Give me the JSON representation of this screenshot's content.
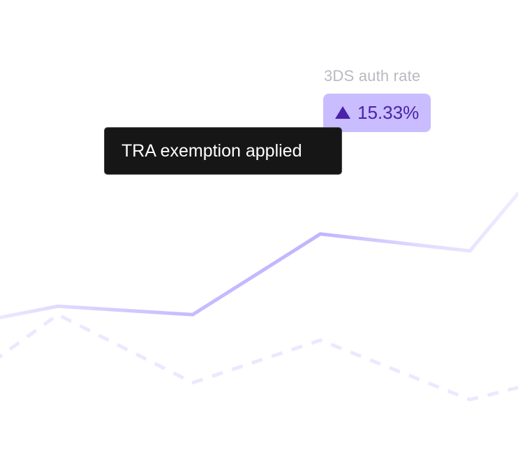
{
  "metric": {
    "label": "3DS auth rate",
    "change": "15.33%",
    "direction_icon": "triangle-up-icon"
  },
  "tooltip": {
    "text": "TRA exemption applied"
  },
  "colors": {
    "primary_line": "#c2b4ff",
    "secondary_line": "#ece8ff",
    "badge_bg": "#c9bcff",
    "badge_text": "#4a23a8",
    "tooltip_bg": "#161616"
  },
  "chart_data": {
    "type": "line",
    "x": [
      0,
      1,
      2,
      3,
      4,
      5,
      6
    ],
    "series": [
      {
        "style": "solid",
        "values": [
          40,
          46,
          42,
          80,
          72,
          110,
          150
        ]
      },
      {
        "style": "dashed",
        "values": [
          20,
          42,
          10,
          30,
          2,
          10,
          10
        ]
      }
    ],
    "xlim": [
      0,
      6
    ],
    "ylim": [
      0,
      150
    ],
    "grid": false,
    "legend": "none"
  }
}
